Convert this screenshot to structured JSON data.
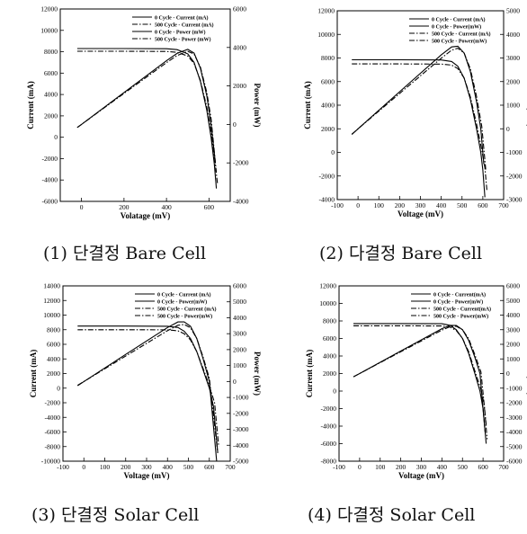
{
  "chart_data": [
    {
      "type": "line",
      "caption": "(1) 단결정 Bare Cell",
      "xlabel": "Volatage (mV)",
      "ylabel": "Current (mA)",
      "y2label": "Power (mW)",
      "xlim": [
        -100,
        700
      ],
      "ylim": [
        -6000,
        12000
      ],
      "y2lim": [
        -4000,
        6000
      ],
      "xticks": [
        0,
        200,
        400,
        600
      ],
      "yticks": [
        -6000,
        -4000,
        -2000,
        0,
        2000,
        4000,
        6000,
        8000,
        10000,
        12000
      ],
      "y2ticks": [
        -4000,
        -2000,
        0,
        2000,
        4000,
        6000
      ],
      "legend_position": "top-right",
      "grid": false,
      "series": [
        {
          "name": "0 Cycle - Current (mA)",
          "axis": "y",
          "style": "solid",
          "x": [
            -20,
            0,
            200,
            400,
            450,
            500,
            530,
            560,
            590,
            610,
            625,
            635
          ],
          "y": [
            8300,
            8300,
            8300,
            8280,
            8200,
            7800,
            7000,
            5200,
            2500,
            0,
            -2500,
            -4800
          ]
        },
        {
          "name": "500 Cycle - Current (mA)",
          "axis": "y",
          "style": "dashdot",
          "x": [
            -20,
            0,
            200,
            400,
            450,
            500,
            530,
            560,
            590,
            610,
            625,
            640
          ],
          "y": [
            8050,
            8050,
            8050,
            8030,
            7950,
            7600,
            6900,
            5300,
            2800,
            500,
            -1800,
            -4300
          ]
        },
        {
          "name": "0 Cycle - Power (mW)",
          "axis": "y2",
          "style": "solid",
          "x": [
            -20,
            0,
            200,
            400,
            450,
            500,
            530,
            560,
            590,
            610,
            630
          ],
          "y": [
            -160,
            0,
            1660,
            3310,
            3690,
            3900,
            3710,
            2910,
            1480,
            0,
            -2000
          ]
        },
        {
          "name": "500 Cycle - Power (mW)",
          "axis": "y2",
          "style": "dashdot",
          "x": [
            -20,
            0,
            200,
            400,
            450,
            500,
            530,
            560,
            590,
            610,
            635
          ],
          "y": [
            -160,
            0,
            1610,
            3210,
            3580,
            3800,
            3660,
            2970,
            1650,
            300,
            -2500
          ]
        }
      ]
    },
    {
      "type": "line",
      "caption": "(2) 다결정 Bare Cell",
      "xlabel": "Voltage (mV)",
      "ylabel": "Current (mA)",
      "y2label": "Power (mW)",
      "xlim": [
        -100,
        700
      ],
      "ylim": [
        -4000,
        12000
      ],
      "y2lim": [
        -3000,
        5000
      ],
      "xticks": [
        -100,
        0,
        100,
        200,
        300,
        400,
        500,
        600,
        700
      ],
      "yticks": [
        -4000,
        -2000,
        0,
        2000,
        4000,
        6000,
        8000,
        10000,
        12000
      ],
      "y2ticks": [
        -3000,
        -2000,
        -1000,
        0,
        1000,
        2000,
        3000,
        4000,
        5000
      ],
      "legend_position": "top-right",
      "grid": false,
      "series": [
        {
          "name": "0 Cycle - Current (mA)",
          "axis": "y",
          "style": "solid",
          "x": [
            -30,
            0,
            200,
            400,
            450,
            480,
            510,
            540,
            570,
            590,
            600,
            610
          ],
          "y": [
            7850,
            7850,
            7850,
            7830,
            7700,
            7300,
            6300,
            4500,
            2000,
            0,
            -1500,
            -3800
          ]
        },
        {
          "name": "0 Cycle - Power(mW)",
          "axis": "y2",
          "style": "solid",
          "x": [
            -30,
            0,
            200,
            400,
            450,
            480,
            510,
            540,
            570,
            590,
            605
          ],
          "y": [
            -240,
            0,
            1570,
            3130,
            3470,
            3500,
            3210,
            2430,
            1140,
            0,
            -1500
          ]
        },
        {
          "name": "500 Cycle - Current (mA)",
          "axis": "y",
          "style": "dashdot",
          "x": [
            -30,
            0,
            200,
            400,
            450,
            480,
            510,
            540,
            570,
            595,
            610,
            620
          ],
          "y": [
            7500,
            7500,
            7500,
            7480,
            7400,
            7100,
            6300,
            4700,
            2400,
            200,
            -1300,
            -3300
          ]
        },
        {
          "name": "500 Cycle - Power(mW)",
          "axis": "y2",
          "style": "dashdot",
          "x": [
            -30,
            0,
            200,
            400,
            450,
            480,
            510,
            540,
            570,
            595,
            615
          ],
          "y": [
            -230,
            0,
            1500,
            2990,
            3330,
            3410,
            3210,
            2540,
            1370,
            100,
            -1800
          ]
        }
      ]
    },
    {
      "type": "line",
      "caption": "(3) 단결정 Solar Cell",
      "xlabel": "Voltage (mV)",
      "ylabel": "Current (mA)",
      "y2label": "Power (mW)",
      "xlim": [
        -100,
        700
      ],
      "ylim": [
        -10000,
        14000
      ],
      "y2lim": [
        -5000,
        6000
      ],
      "xticks": [
        -100,
        0,
        100,
        200,
        300,
        400,
        500,
        600,
        700
      ],
      "yticks": [
        -10000,
        -8000,
        -6000,
        -4000,
        -2000,
        0,
        2000,
        4000,
        6000,
        8000,
        10000,
        12000,
        14000
      ],
      "y2ticks": [
        -5000,
        -4000,
        -3000,
        -2000,
        -1000,
        0,
        1000,
        2000,
        3000,
        4000,
        5000,
        6000
      ],
      "legend_position": "top-right",
      "grid": false,
      "series": [
        {
          "name": "0 Cycle - Current (mA)",
          "axis": "y",
          "style": "solid",
          "x": [
            -30,
            0,
            200,
            400,
            450,
            480,
            510,
            540,
            570,
            600,
            620,
            640
          ],
          "y": [
            8500,
            8500,
            8500,
            8480,
            8300,
            7800,
            6800,
            5000,
            2500,
            0,
            -2500,
            -8800
          ]
        },
        {
          "name": "0 Cycle - Power(mW)",
          "axis": "y2",
          "style": "solid",
          "x": [
            -30,
            0,
            200,
            400,
            450,
            480,
            510,
            540,
            570,
            600,
            635
          ],
          "y": [
            -260,
            0,
            1700,
            3390,
            3740,
            3740,
            3470,
            2700,
            1430,
            0,
            -5000
          ]
        },
        {
          "name": "500 Cycle - Current (mA)",
          "axis": "y",
          "style": "dashdot",
          "x": [
            -30,
            0,
            200,
            400,
            450,
            480,
            510,
            540,
            570,
            600,
            625,
            645
          ],
          "y": [
            8000,
            8000,
            8000,
            7980,
            7850,
            7450,
            6600,
            5000,
            2700,
            300,
            -2000,
            -8000
          ]
        },
        {
          "name": "500 Cycle - Power(mW)",
          "axis": "y2",
          "style": "dashdot",
          "x": [
            -30,
            0,
            200,
            400,
            450,
            480,
            510,
            540,
            570,
            600,
            640
          ],
          "y": [
            -240,
            0,
            1600,
            3190,
            3530,
            3580,
            3370,
            2700,
            1540,
            200,
            -4500
          ]
        }
      ]
    },
    {
      "type": "line",
      "caption": "(4) 다결정 Solar Cell",
      "xlabel": "Voltage (mV)",
      "ylabel": "Current (mA)",
      "y2label": "Power (mW)",
      "xlim": [
        -100,
        700
      ],
      "ylim": [
        -8000,
        12000
      ],
      "y2lim": [
        -6000,
        6000
      ],
      "xticks": [
        -100,
        0,
        100,
        200,
        300,
        400,
        500,
        600,
        700
      ],
      "yticks": [
        -8000,
        -6000,
        -4000,
        -2000,
        0,
        2000,
        4000,
        6000,
        8000,
        10000,
        12000
      ],
      "y2ticks": [
        -6000,
        -5000,
        -4000,
        -3000,
        -2000,
        -1000,
        0,
        1000,
        2000,
        3000,
        4000,
        5000,
        6000
      ],
      "legend_position": "top-right",
      "grid": false,
      "series": [
        {
          "name": "0 Cycle - Current(mA)",
          "axis": "y",
          "style": "solid",
          "x": [
            -30,
            0,
            200,
            400,
            440,
            470,
            500,
            530,
            560,
            585,
            600,
            615
          ],
          "y": [
            7700,
            7700,
            7700,
            7680,
            7500,
            7000,
            6000,
            4300,
            2000,
            0,
            -2000,
            -6000
          ]
        },
        {
          "name": "0 Cycle - Power(mW)",
          "axis": "y2",
          "style": "solid",
          "x": [
            -30,
            0,
            200,
            400,
            440,
            470,
            500,
            530,
            560,
            585,
            610
          ],
          "y": [
            -230,
            0,
            1540,
            3070,
            3300,
            3290,
            3000,
            2280,
            1120,
            0,
            -4000
          ]
        },
        {
          "name": "500 Cycle - Current(mA)",
          "axis": "y",
          "style": "dashdot",
          "x": [
            -30,
            0,
            200,
            400,
            440,
            470,
            500,
            530,
            560,
            590,
            605,
            620
          ],
          "y": [
            7450,
            7450,
            7450,
            7430,
            7300,
            6900,
            6000,
            4500,
            2300,
            200,
            -1500,
            -5500
          ]
        },
        {
          "name": "500 Cycle - Power(mW)",
          "axis": "y2",
          "style": "dashdot",
          "x": [
            -30,
            0,
            200,
            400,
            440,
            470,
            500,
            530,
            560,
            590,
            615
          ],
          "y": [
            -220,
            0,
            1490,
            2970,
            3210,
            3240,
            3000,
            2380,
            1290,
            100,
            -3500
          ]
        }
      ]
    }
  ]
}
